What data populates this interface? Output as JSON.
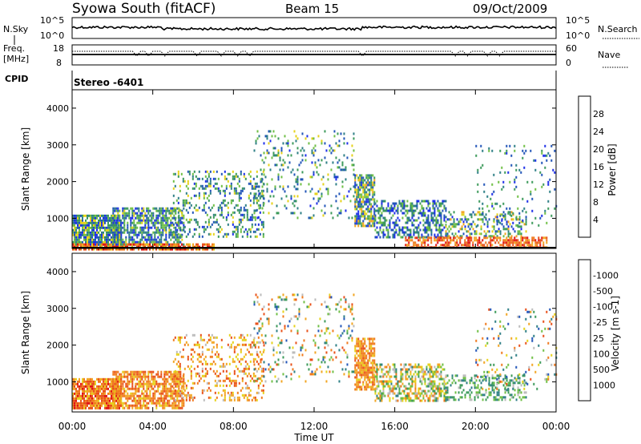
{
  "header": {
    "station": "Syowa South (fitACF)",
    "beam": "Beam 15",
    "date": "09/Oct/2009"
  },
  "noise_panel": {
    "left_label": "N.Sky",
    "right_label": "N.Search",
    "left_ticks": [
      "10^5",
      "10^0"
    ],
    "right_ticks": [
      "10^5",
      "10^0"
    ]
  },
  "freq_panel": {
    "left_label_1": "Freq.",
    "left_label_2": "[MHz]",
    "right_label": "Nave",
    "left_ticks": [
      "18",
      "8"
    ],
    "right_ticks": [
      "60",
      "0"
    ]
  },
  "cpid": {
    "label": "CPID",
    "value": "Stereo -6401"
  },
  "x_axis": {
    "label": "Time UT",
    "ticks": [
      "00:00",
      "04:00",
      "08:00",
      "12:00",
      "16:00",
      "20:00",
      "00:00"
    ]
  },
  "chart_data": [
    {
      "type": "heatmap",
      "name": "power",
      "ylabel": "Slant Range [km]",
      "yticks": [
        1000,
        2000,
        3000,
        4000
      ],
      "ylim": [
        180,
        4500
      ],
      "xlim_hours": [
        0,
        24
      ],
      "colorbar": {
        "label": "Power [dB]",
        "ticks": [
          "4",
          "8",
          "12",
          "16",
          "20",
          "24",
          "28"
        ],
        "colors": [
          "#1c2ee8",
          "#2255b8",
          "#2e7f86",
          "#3c9a5a",
          "#6fbf45",
          "#e6d21a",
          "#f2a522",
          "#f07a1e",
          "#e8501a",
          "#e01414"
        ]
      },
      "regions": [
        {
          "t": [
            0.0,
            2.4
          ],
          "r": [
            300,
            1100
          ],
          "density": 0.85,
          "value_range": [
            0.0,
            0.6
          ]
        },
        {
          "t": [
            2.0,
            5.5
          ],
          "r": [
            300,
            1300
          ],
          "density": 0.7,
          "value_range": [
            0.0,
            0.55
          ]
        },
        {
          "t": [
            5.0,
            9.5
          ],
          "r": [
            500,
            2300
          ],
          "density": 0.25,
          "value_range": [
            0.05,
            0.55
          ]
        },
        {
          "t": [
            9.0,
            14.0
          ],
          "r": [
            1000,
            3400
          ],
          "density": 0.12,
          "value_range": [
            0.05,
            0.55
          ]
        },
        {
          "t": [
            14.0,
            15.0
          ],
          "r": [
            800,
            2200
          ],
          "density": 0.75,
          "value_range": [
            0.0,
            0.7
          ]
        },
        {
          "t": [
            15.0,
            18.5
          ],
          "r": [
            500,
            1500
          ],
          "density": 0.5,
          "value_range": [
            0.0,
            0.5
          ]
        },
        {
          "t": [
            18.5,
            22.5
          ],
          "r": [
            500,
            1200
          ],
          "density": 0.35,
          "value_range": [
            0.0,
            0.7
          ]
        },
        {
          "t": [
            16.5,
            23.5
          ],
          "r": [
            200,
            500
          ],
          "density": 0.6,
          "value_range": [
            0.6,
            1.0
          ]
        },
        {
          "t": [
            0.0,
            7.0
          ],
          "r": [
            180,
            320
          ],
          "density": 0.8,
          "value_range": [
            0.55,
            1.0
          ]
        },
        {
          "t": [
            20.0,
            24.0
          ],
          "r": [
            800,
            3000
          ],
          "density": 0.08,
          "value_range": [
            0.05,
            0.5
          ]
        }
      ],
      "ground_line_km": 200
    },
    {
      "type": "heatmap",
      "name": "velocity",
      "ylabel": "Slant Range [km]",
      "yticks": [
        1000,
        2000,
        3000,
        4000
      ],
      "ylim": [
        180,
        4500
      ],
      "xlim_hours": [
        0,
        24
      ],
      "colorbar": {
        "label": "Velocity [m s-1]",
        "ticks": [
          "1000",
          "500",
          "100",
          "25",
          "-25",
          "-100",
          "-500",
          "-1000"
        ],
        "colors": [
          "#1c2ee8",
          "#2255b8",
          "#2e7f86",
          "#3c9a5a",
          "#6fbf45",
          "#bbbbbb",
          "#e6d21a",
          "#f2a522",
          "#f07a1e",
          "#e8501a",
          "#e01414"
        ]
      },
      "regions": [
        {
          "t": [
            0.0,
            2.4
          ],
          "r": [
            300,
            1100
          ],
          "density": 0.85,
          "value_range": [
            0.6,
            0.95
          ]
        },
        {
          "t": [
            2.0,
            5.5
          ],
          "r": [
            300,
            1300
          ],
          "density": 0.7,
          "value_range": [
            0.6,
            0.9
          ]
        },
        {
          "t": [
            5.0,
            9.5
          ],
          "r": [
            500,
            2300
          ],
          "density": 0.25,
          "value_range": [
            0.5,
            0.9
          ]
        },
        {
          "t": [
            9.0,
            14.0
          ],
          "r": [
            1000,
            3400
          ],
          "density": 0.12,
          "value_range": [
            0.1,
            0.9
          ]
        },
        {
          "t": [
            14.0,
            15.0
          ],
          "r": [
            800,
            2200
          ],
          "density": 0.75,
          "value_range": [
            0.6,
            0.85
          ]
        },
        {
          "t": [
            15.0,
            18.5
          ],
          "r": [
            500,
            1500
          ],
          "density": 0.5,
          "value_range": [
            0.25,
            0.8
          ]
        },
        {
          "t": [
            18.5,
            22.5
          ],
          "r": [
            500,
            1200
          ],
          "density": 0.35,
          "value_range": [
            0.2,
            0.5
          ]
        },
        {
          "t": [
            20.0,
            24.0
          ],
          "r": [
            800,
            3000
          ],
          "density": 0.08,
          "value_range": [
            0.1,
            0.9
          ]
        }
      ]
    }
  ]
}
